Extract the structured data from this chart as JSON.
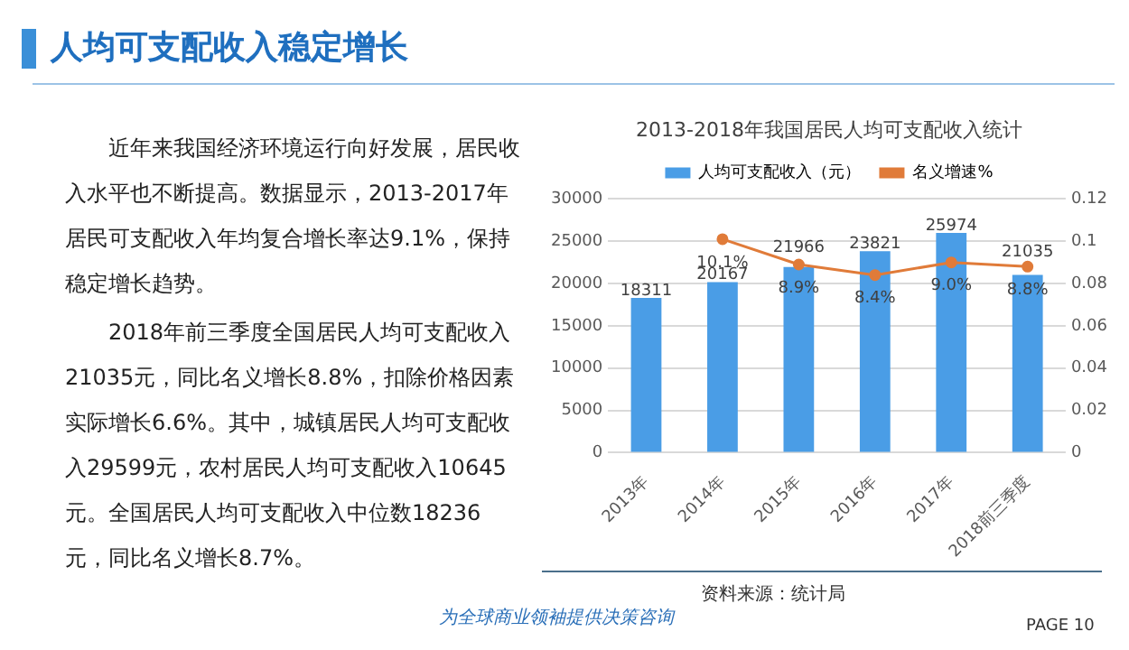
{
  "chart_data": {
    "type": "bar",
    "title": "人均可支配收入稳定增长",
    "subtitle": "2013-2018年我国居民人均可支配收入统计",
    "categories": [
      "2013年",
      "2014年",
      "2015年",
      "2016年",
      "2017年",
      "2018前三季度"
    ],
    "series": [
      {
        "name": "人均可支配收入（元）",
        "color": "#4a9de6",
        "values": [
          18311,
          20167,
          21966,
          23821,
          25974,
          21035
        ],
        "value_labels": [
          "18311",
          "20167",
          "21966",
          "23821",
          "25974",
          "21035"
        ]
      },
      {
        "name": "名义增速%",
        "type": "line",
        "axis": "y2",
        "color": "#e07b39",
        "values": [
          null,
          0.101,
          0.089,
          0.084,
          0.09,
          0.088
        ],
        "value_labels": [
          null,
          "10.1%",
          "8.9%",
          "8.4%",
          "9.0%",
          "8.8%"
        ]
      }
    ],
    "ylim": [
      0,
      30000
    ],
    "yticks": [
      0,
      5000,
      10000,
      15000,
      20000,
      25000,
      30000
    ],
    "y2lim": [
      0,
      0.12
    ],
    "y2ticks": [
      0,
      0.02,
      0.04,
      0.06,
      0.08,
      0.1,
      0.12
    ],
    "grid": "y",
    "legend": "top",
    "marker": "circle",
    "line_style": "solid",
    "annotations": [
      "近年来我国经济环境运行向好发展，居民收入水平也不断提高。数据显示，2013-2017年居民可支配收入年均复合增长率达9.1%，保持稳定增长趋势。",
      "2018年前三季度全国居民人均可支配收入21035元，同比名义增长8.8%，扣除价格因素实际增长6.6%。其中，城镇居民人均可支配收入29599元，农村居民人均可支配收入10645元。全国居民人均可支配收入中位数18236元，同比名义增长8.7%。",
      "资料来源：统计局",
      "为全球商业领袖提供决策咨询",
      "PAGE 10"
    ]
  }
}
